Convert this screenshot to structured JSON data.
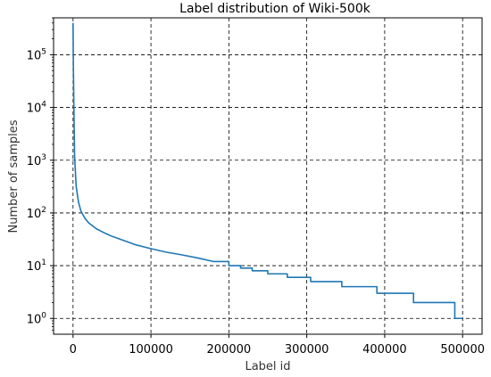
{
  "chart_data": {
    "type": "line",
    "title": "Label distribution of Wiki-500k",
    "xlabel": "Label id",
    "ylabel": "Number of samples",
    "xlim": [
      -25000,
      525000
    ],
    "ylim_log10": [
      -0.3,
      5.7
    ],
    "y_scale": "log",
    "grid": true,
    "x_ticks": [
      0,
      100000,
      200000,
      300000,
      400000,
      500000
    ],
    "x_tick_labels": [
      "0",
      "100000",
      "200000",
      "300000",
      "400000",
      "500000"
    ],
    "y_ticks": [
      1,
      10,
      100,
      1000,
      10000,
      100000
    ],
    "y_tick_labels": [
      {
        "base": "10",
        "exp": "0"
      },
      {
        "base": "10",
        "exp": "1"
      },
      {
        "base": "10",
        "exp": "2"
      },
      {
        "base": "10",
        "exp": "3"
      },
      {
        "base": "10",
        "exp": "4"
      },
      {
        "base": "10",
        "exp": "5"
      }
    ],
    "series": [
      {
        "color": "#1f77b4",
        "x": [
          0,
          500,
          1000,
          2000,
          4000,
          7000,
          10000,
          15000,
          20000,
          30000,
          40000,
          50000,
          60000,
          80000,
          100000,
          120000,
          140000,
          160000,
          180000,
          200000,
          215000,
          230000,
          250000,
          275000,
          305000,
          345000,
          390000,
          437000,
          488000,
          490000
        ],
        "y": [
          400000,
          50000,
          12000,
          1200,
          320,
          160,
          110,
          80,
          65,
          50,
          42,
          36,
          32,
          25,
          21,
          18,
          16,
          14,
          12,
          10,
          9,
          8,
          7,
          6,
          5,
          4,
          3,
          2,
          2,
          1
        ],
        "step_from_x": 195000
      }
    ]
  }
}
